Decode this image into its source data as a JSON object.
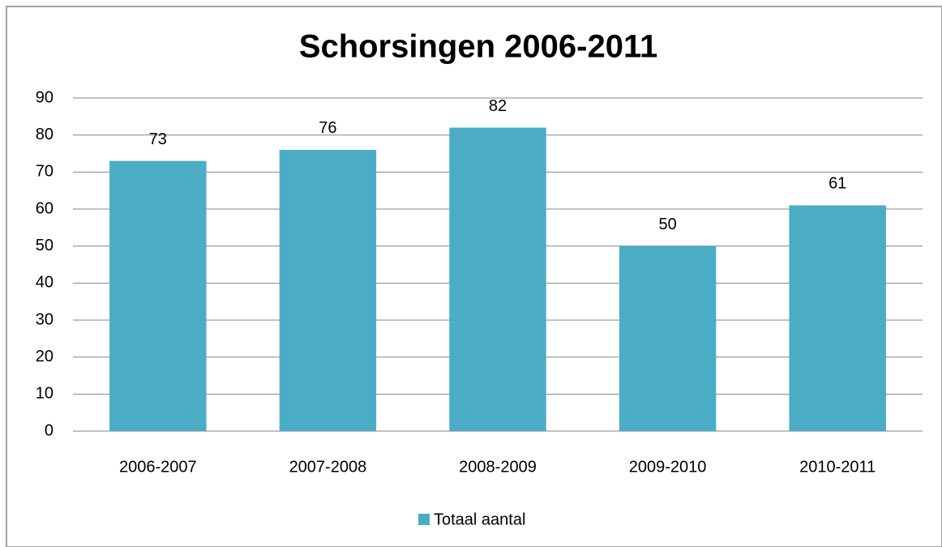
{
  "chart_data": {
    "type": "bar",
    "title": "Schorsingen 2006-2011",
    "categories": [
      "2006-2007",
      "2007-2008",
      "2008-2009",
      "2009-2010",
      "2010-2011"
    ],
    "series": [
      {
        "name": "Totaal aantal",
        "color": "#4bacc6",
        "values": [
          73,
          76,
          82,
          50,
          61
        ]
      }
    ],
    "ylim": [
      0,
      90
    ],
    "yticks": [
      0,
      10,
      20,
      30,
      40,
      50,
      60,
      70,
      80,
      90
    ],
    "grid": true,
    "legend": "bottom"
  }
}
